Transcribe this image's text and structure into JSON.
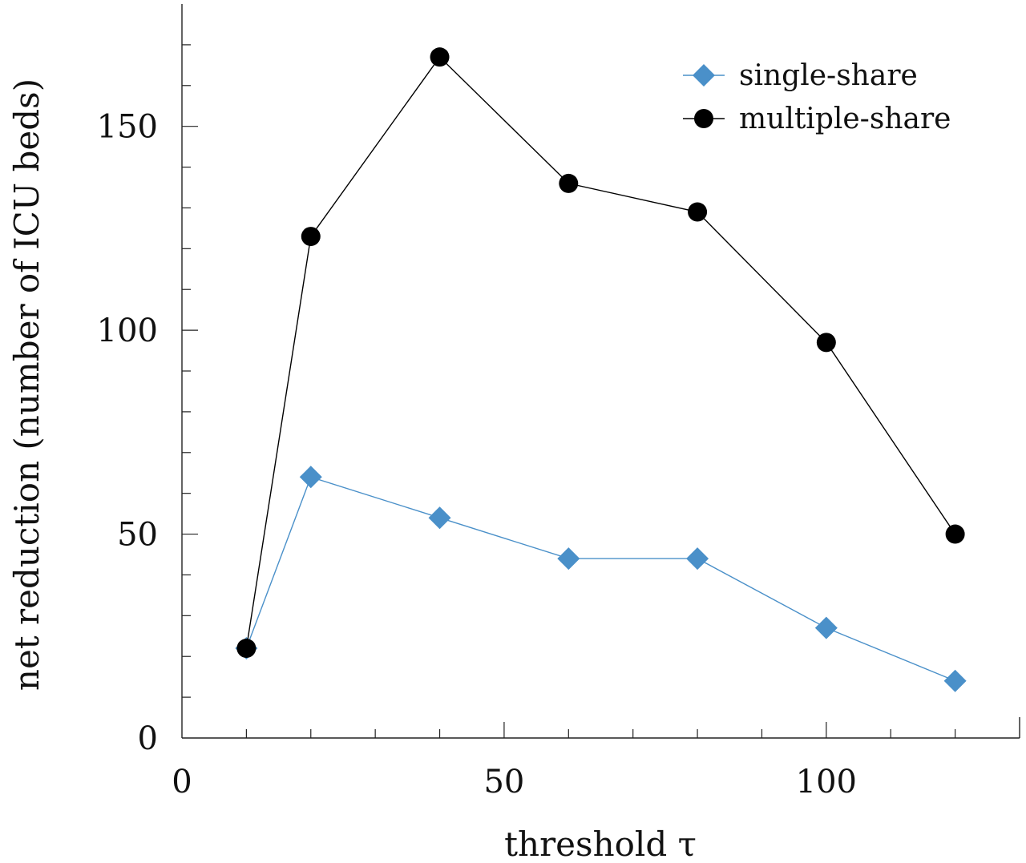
{
  "chart_data": {
    "type": "line",
    "xlabel": "threshold τ",
    "ylabel": "net reduction (number of ICU beds)",
    "xlim": [
      0,
      130
    ],
    "ylim": [
      0,
      180
    ],
    "x_ticks": [
      0,
      50,
      100
    ],
    "y_ticks": [
      0,
      50,
      100,
      150
    ],
    "x_minor_step": 10,
    "y_minor_step": 10,
    "legend_position": "top-right",
    "grid": false,
    "series": [
      {
        "name": "single-share",
        "color": "#4a90c9",
        "marker": "diamond",
        "x": [
          10,
          20,
          40,
          60,
          80,
          100,
          120
        ],
        "y": [
          22,
          64,
          54,
          44,
          44,
          27,
          14
        ]
      },
      {
        "name": "multiple-share",
        "color": "#000000",
        "marker": "circle",
        "x": [
          10,
          20,
          40,
          60,
          80,
          100,
          120
        ],
        "y": [
          22,
          123,
          167,
          136,
          129,
          97,
          50
        ]
      }
    ]
  }
}
